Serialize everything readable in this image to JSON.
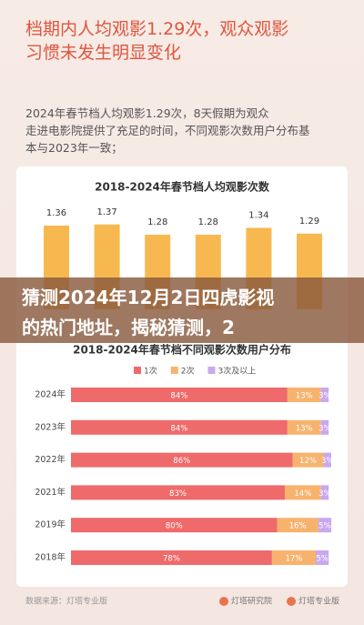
{
  "heading": "档期内人均观影1.29次，观众观影习惯未发生明显变化",
  "paragraph": "2024年春节档人均观影1.29次，8天假期为观众走进电影院提供了充足的时间，不同观影次数用户分布基本与2023年一致；",
  "overlay": "猜测2024年12月2日四虎影视的热门地址，揭秘猜测，2",
  "source": "数据来源：灯塔专业版",
  "logos": [
    "灯塔研究院",
    "灯塔专业版"
  ],
  "chart_data": [
    {
      "type": "bar",
      "title": "2018-2024年春节档人均观影次数",
      "values": [
        1.36,
        1.37,
        1.28,
        1.28,
        1.34,
        1.29
      ],
      "color": "#f7b94f",
      "ylim": [
        0,
        1.5
      ]
    },
    {
      "type": "stacked-barh",
      "title": "2018-2024年春节档不同观影次数用户分布",
      "categories": [
        "2024年",
        "2023年",
        "2022年",
        "2021年",
        "2019年",
        "2018年"
      ],
      "series": [
        {
          "name": "1次",
          "color": "#ef6a6a",
          "values": [
            84,
            84,
            86,
            83,
            80,
            78
          ],
          "value_labels": [
            "84%",
            "84%",
            "86%",
            "83%",
            "80%",
            "78%"
          ]
        },
        {
          "name": "2次",
          "color": "#f7b36e",
          "values": [
            13,
            13,
            12,
            14,
            16,
            17
          ],
          "value_labels": [
            "13%",
            "13%",
            "12%",
            "14%",
            "16%",
            "17%"
          ]
        },
        {
          "name": "3次及以上",
          "color": "#c9a8ee",
          "values": [
            3,
            3,
            3,
            3,
            5,
            5
          ],
          "value_labels": [
            "3%",
            "3%",
            "3%",
            "3%",
            "5%",
            "5%"
          ]
        }
      ],
      "xlim": [
        0,
        101
      ]
    }
  ]
}
